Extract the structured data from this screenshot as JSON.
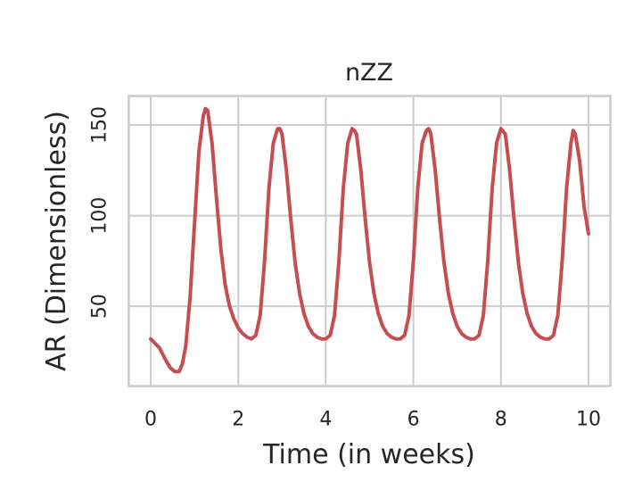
{
  "chart_data": {
    "type": "line",
    "title": "nZZ",
    "xlabel": "Time (in weeks)",
    "ylabel": "AR (Dimensionless)",
    "xlim": [
      -0.5,
      10.5
    ],
    "ylim": [
      6,
      166
    ],
    "xticks": [
      "0",
      "2",
      "4",
      "6",
      "8",
      "10"
    ],
    "yticks": [
      "50",
      "100",
      "150"
    ],
    "grid": true,
    "series": [
      {
        "color": "#c44e52",
        "x": [
          0,
          0.2,
          0.35,
          0.45,
          0.55,
          0.65,
          0.72,
          0.8,
          0.9,
          1.0,
          1.1,
          1.2,
          1.25,
          1.3,
          1.4,
          1.5,
          1.6,
          1.7,
          1.8,
          1.9,
          2.0,
          2.1,
          2.2,
          2.3,
          2.4,
          2.5,
          2.6,
          2.7,
          2.8,
          2.9,
          2.95,
          3.0,
          3.1,
          3.2,
          3.3,
          3.4,
          3.5,
          3.6,
          3.7,
          3.8,
          3.9,
          4.0,
          4.1,
          4.2,
          4.3,
          4.4,
          4.5,
          4.6,
          4.65,
          4.7,
          4.8,
          4.9,
          5.0,
          5.1,
          5.2,
          5.3,
          5.4,
          5.5,
          5.6,
          5.7,
          5.8,
          5.9,
          6.0,
          6.1,
          6.2,
          6.3,
          6.35,
          6.4,
          6.5,
          6.6,
          6.7,
          6.8,
          6.9,
          7.0,
          7.1,
          7.2,
          7.3,
          7.4,
          7.5,
          7.6,
          7.7,
          7.8,
          7.9,
          8.0,
          8.1,
          8.2,
          8.3,
          8.4,
          8.5,
          8.6,
          8.7,
          8.8,
          8.9,
          9.0,
          9.1,
          9.2,
          9.3,
          9.4,
          9.5,
          9.6,
          9.65,
          9.7,
          9.8,
          9.9,
          10.0
        ],
        "y": [
          32,
          27,
          20,
          16,
          14,
          14,
          18,
          28,
          55,
          95,
          135,
          155,
          159,
          158,
          140,
          110,
          82,
          62,
          50,
          43,
          38,
          35,
          33,
          32,
          34,
          45,
          75,
          115,
          140,
          148,
          148,
          145,
          125,
          98,
          74,
          57,
          46,
          39,
          35,
          33,
          32,
          32,
          34,
          45,
          75,
          115,
          140,
          148,
          147,
          145,
          125,
          98,
          74,
          57,
          46,
          39,
          35,
          33,
          32,
          32,
          34,
          45,
          75,
          115,
          140,
          147,
          148,
          145,
          125,
          98,
          74,
          57,
          46,
          39,
          35,
          33,
          32,
          32,
          34,
          45,
          75,
          115,
          140,
          148,
          145,
          125,
          98,
          74,
          57,
          46,
          39,
          35,
          33,
          32,
          32,
          34,
          45,
          75,
          115,
          140,
          147,
          145,
          130,
          105,
          90
        ]
      }
    ]
  }
}
